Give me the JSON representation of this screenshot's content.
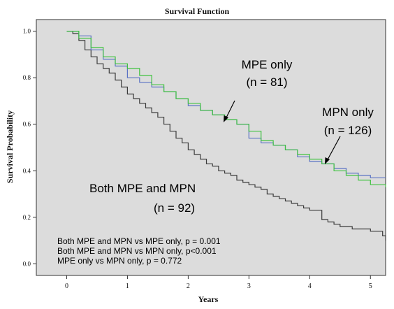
{
  "chart_data": {
    "type": "line",
    "step": true,
    "title": "Survival Function",
    "xlabel": "Years",
    "ylabel": "Survival Probability",
    "xlim": [
      -0.5,
      5.25
    ],
    "ylim": [
      -0.05,
      1.05
    ],
    "xticks": [
      0,
      1,
      2,
      3,
      4,
      5
    ],
    "yticks": [
      0.0,
      0.2,
      0.4,
      0.6,
      0.8,
      1.0
    ],
    "ytick_labels": [
      "0.0",
      "0.2",
      "0.4",
      "0.6",
      "0.8",
      "1.0"
    ],
    "grid": false,
    "plot_background": "#dcdcdc",
    "series": [
      {
        "name": "Both MPE and MPN",
        "color": "#3a3a3a",
        "x": [
          0,
          0.1,
          0.2,
          0.3,
          0.4,
          0.5,
          0.6,
          0.7,
          0.8,
          0.9,
          1.0,
          1.1,
          1.2,
          1.3,
          1.4,
          1.5,
          1.6,
          1.7,
          1.8,
          1.9,
          2.0,
          2.1,
          2.2,
          2.3,
          2.4,
          2.5,
          2.6,
          2.7,
          2.8,
          2.9,
          3.0,
          3.1,
          3.2,
          3.3,
          3.4,
          3.5,
          3.6,
          3.7,
          3.8,
          3.9,
          4.0,
          4.1,
          4.2,
          4.3,
          4.4,
          4.5,
          4.6,
          4.7,
          4.8,
          4.9,
          5.0,
          5.1,
          5.2,
          5.25
        ],
        "y": [
          1.0,
          0.99,
          0.96,
          0.92,
          0.89,
          0.86,
          0.84,
          0.82,
          0.79,
          0.76,
          0.73,
          0.71,
          0.69,
          0.67,
          0.65,
          0.63,
          0.6,
          0.57,
          0.54,
          0.52,
          0.49,
          0.47,
          0.45,
          0.43,
          0.42,
          0.4,
          0.39,
          0.38,
          0.36,
          0.35,
          0.34,
          0.33,
          0.32,
          0.3,
          0.29,
          0.28,
          0.27,
          0.26,
          0.25,
          0.24,
          0.23,
          0.23,
          0.19,
          0.18,
          0.17,
          0.16,
          0.16,
          0.15,
          0.15,
          0.15,
          0.14,
          0.14,
          0.12,
          0.1
        ]
      },
      {
        "name": "MPE only",
        "color": "#5a72c4",
        "x": [
          0,
          0.2,
          0.4,
          0.6,
          0.8,
          1.0,
          1.2,
          1.4,
          1.6,
          1.8,
          2.0,
          2.2,
          2.4,
          2.6,
          2.8,
          3.0,
          3.2,
          3.4,
          3.6,
          3.8,
          4.0,
          4.2,
          4.4,
          4.6,
          4.8,
          5.0,
          5.25
        ],
        "y": [
          1.0,
          0.98,
          0.92,
          0.88,
          0.85,
          0.8,
          0.78,
          0.76,
          0.74,
          0.71,
          0.68,
          0.66,
          0.64,
          0.62,
          0.6,
          0.54,
          0.52,
          0.51,
          0.49,
          0.46,
          0.44,
          0.43,
          0.41,
          0.39,
          0.38,
          0.37,
          0.37
        ]
      },
      {
        "name": "MPN only",
        "color": "#3fc23f",
        "x": [
          0,
          0.2,
          0.4,
          0.6,
          0.8,
          1.0,
          1.2,
          1.4,
          1.6,
          1.8,
          2.0,
          2.2,
          2.4,
          2.6,
          2.8,
          3.0,
          3.2,
          3.4,
          3.6,
          3.8,
          4.0,
          4.2,
          4.4,
          4.6,
          4.8,
          5.0,
          5.25
        ],
        "y": [
          1.0,
          0.97,
          0.93,
          0.89,
          0.86,
          0.84,
          0.81,
          0.77,
          0.74,
          0.71,
          0.69,
          0.66,
          0.64,
          0.62,
          0.6,
          0.57,
          0.53,
          0.51,
          0.49,
          0.47,
          0.45,
          0.43,
          0.4,
          0.38,
          0.36,
          0.34,
          0.33
        ]
      }
    ],
    "annotations": [
      {
        "id": "mpe",
        "lines": [
          "MPE only",
          "(n = 81)"
        ]
      },
      {
        "id": "mpn",
        "lines": [
          "MPN only",
          "(n = 126)"
        ]
      },
      {
        "id": "both",
        "lines": [
          "Both MPE and MPN",
          "(n = 92)"
        ]
      },
      {
        "id": "stats",
        "lines": [
          "Both MPE and MPN vs MPE only, p = 0.001",
          "Both MPE and MPN vs MPN only, p<0.001",
          "MPE only vs MPN only, p = 0.772"
        ]
      }
    ]
  }
}
